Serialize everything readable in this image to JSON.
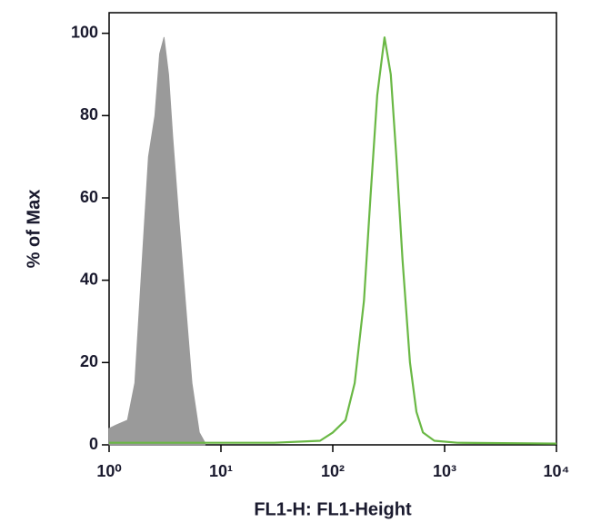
{
  "chart_data": {
    "type": "area",
    "xlabel": "FL1-H: FL1-Height",
    "ylabel": "% of Max",
    "log_x": true,
    "xlim": [
      1,
      10000
    ],
    "xticks": [
      {
        "value": 1,
        "label": "10⁰"
      },
      {
        "value": 10,
        "label": "10¹"
      },
      {
        "value": 100,
        "label": "10²"
      },
      {
        "value": 1000,
        "label": "10³"
      },
      {
        "value": 10000,
        "label": "10⁴"
      }
    ],
    "ylim": [
      0,
      105
    ],
    "yticks": [
      0,
      20,
      40,
      60,
      80,
      100
    ],
    "series": [
      {
        "color": "#9a9a9a",
        "fill": true,
        "x": [
          1.0,
          1.2,
          1.46,
          1.7,
          1.93,
          2.25,
          2.57,
          2.83,
          3.1,
          3.4,
          3.7,
          4.2,
          4.8,
          5.5,
          6.4,
          7.2
        ],
        "values": [
          4,
          5,
          6,
          15,
          40,
          70,
          80,
          95,
          99,
          90,
          75,
          55,
          35,
          15,
          3,
          0.5
        ]
      },
      {
        "color": "#6ab845",
        "fill": false,
        "x": [
          1,
          30,
          77,
          100,
          130,
          157,
          190,
          217,
          250,
          290,
          330,
          370,
          420,
          490,
          560,
          640,
          810,
          1300,
          10000
        ],
        "values": [
          0.5,
          0.5,
          1,
          3,
          6,
          15,
          35,
          60,
          85,
          99,
          90,
          70,
          45,
          20,
          8,
          3,
          1,
          0.5,
          0.3
        ]
      }
    ]
  }
}
